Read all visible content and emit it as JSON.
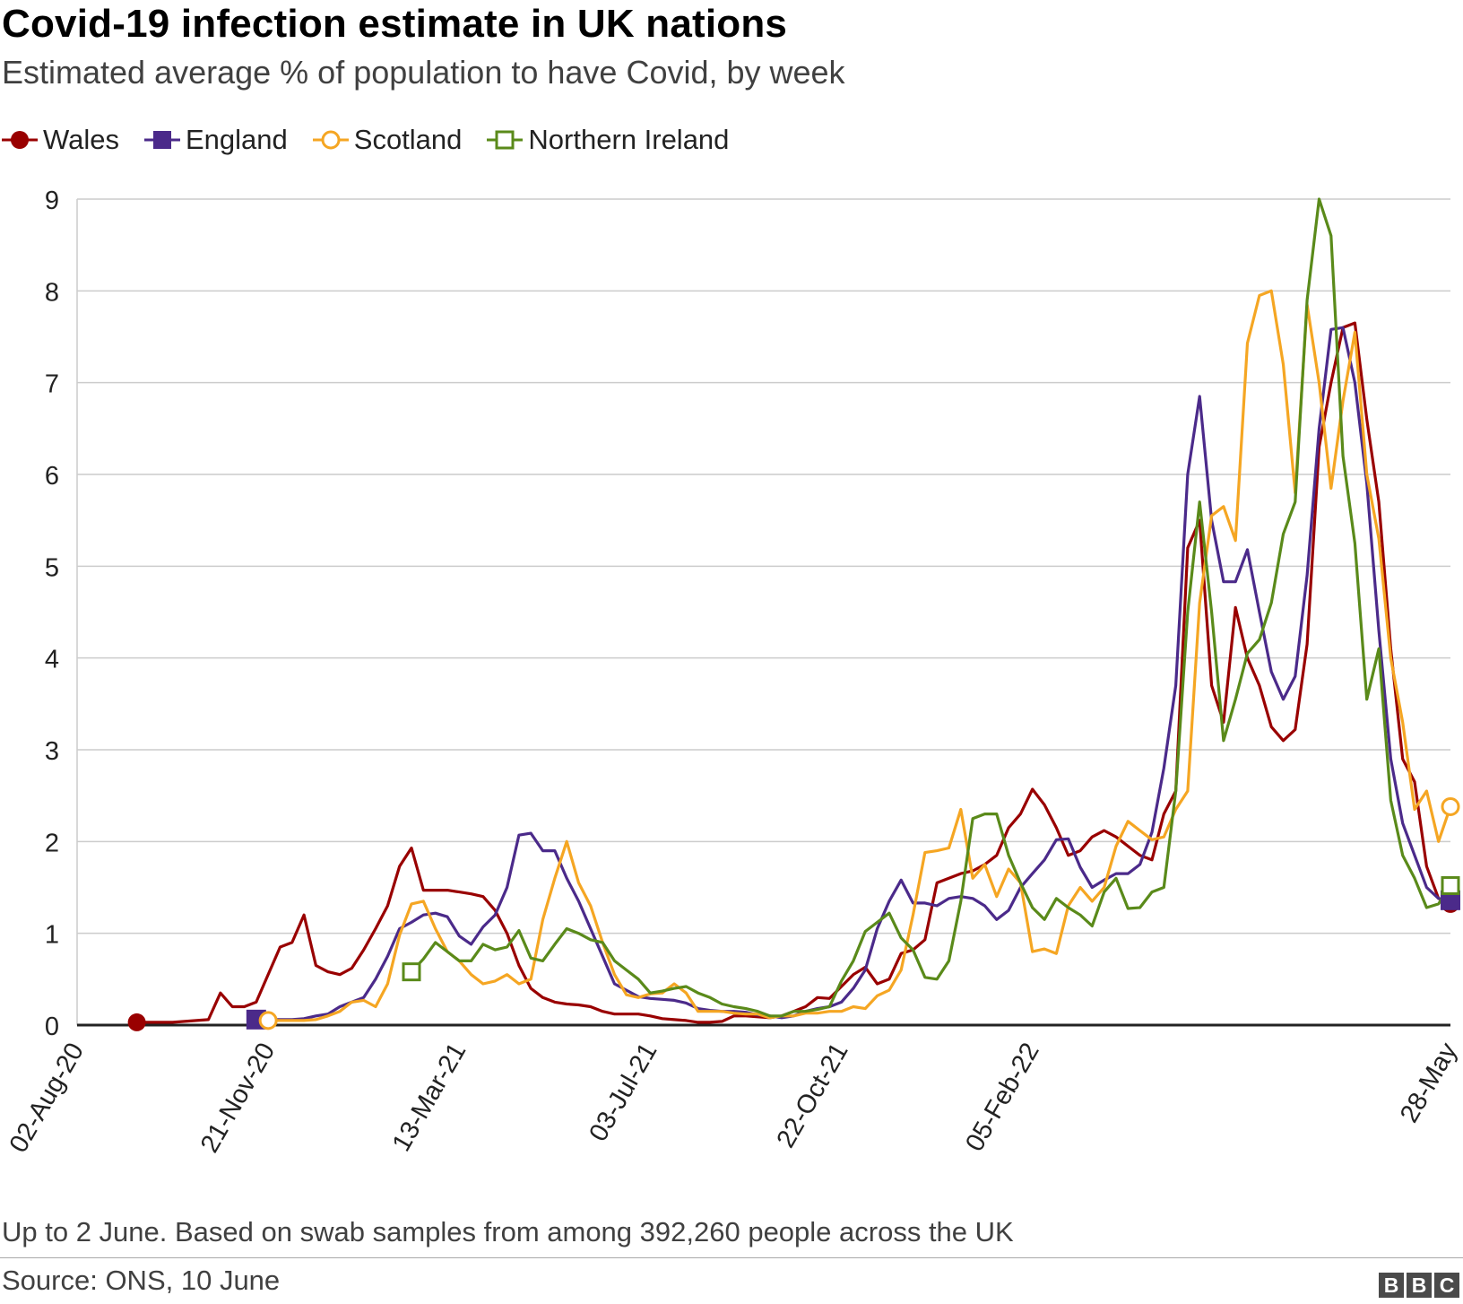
{
  "header": {
    "title": "Covid-19 infection estimate in UK nations",
    "subtitle": "Estimated average % of population to have Covid, by week"
  },
  "footer": {
    "note": "Up to 2 June. Based on swab samples from among 392,260 people across the UK",
    "source": "Source: ONS, 10 June",
    "logo_letters": [
      "B",
      "B",
      "C"
    ]
  },
  "chart_data": {
    "type": "line",
    "title": "Covid-19 infection estimate in UK nations",
    "subtitle": "Estimated average % of population to have Covid, by week",
    "ylim": [
      0,
      9
    ],
    "yticks": [
      "0",
      "1",
      "2",
      "3",
      "4",
      "5",
      "6",
      "7",
      "8",
      "9"
    ],
    "xticks": [
      "02-Aug-20",
      "21-Nov-20",
      "13-Mar-21",
      "03-Jul-21",
      "22-Oct-21",
      "05-Feb-22",
      "28-May"
    ],
    "grid": "horizontal",
    "legend_position": "top-left",
    "series": [
      {
        "name": "Wales",
        "color": "#990000",
        "marker": "circle-filled",
        "values": [
          0.03,
          0.03,
          0.03,
          0.03,
          0.04,
          0.05,
          0.06,
          0.35,
          0.2,
          0.2,
          0.25,
          0.55,
          0.85,
          0.9,
          1.2,
          0.65,
          0.58,
          0.55,
          0.62,
          0.82,
          1.05,
          1.3,
          1.73,
          1.93,
          1.47,
          1.47,
          1.47,
          1.45,
          1.43,
          1.4,
          1.25,
          1.0,
          0.65,
          0.4,
          0.3,
          0.25,
          0.23,
          0.22,
          0.2,
          0.15,
          0.12,
          0.12,
          0.12,
          0.1,
          0.07,
          0.06,
          0.05,
          0.03,
          0.03,
          0.04,
          0.1,
          0.1,
          0.09,
          0.08,
          0.1,
          0.15,
          0.2,
          0.3,
          0.29,
          0.42,
          0.55,
          0.63,
          0.45,
          0.5,
          0.78,
          0.82,
          0.93,
          1.55,
          1.6,
          1.65,
          1.68,
          1.75,
          1.85,
          2.15,
          2.3,
          2.57,
          2.4,
          2.15,
          1.85,
          1.9,
          2.05,
          2.12,
          2.05,
          1.95,
          1.85,
          1.8,
          2.3,
          2.55,
          5.2,
          5.5,
          3.7,
          3.3,
          4.55,
          4.0,
          3.7,
          3.25,
          3.1,
          3.22,
          4.15,
          6.3,
          7.0,
          7.6,
          7.65,
          6.6,
          5.7,
          4.1,
          2.9,
          2.65,
          1.73,
          1.38,
          1.32
        ]
      },
      {
        "name": "England",
        "color": "#4b2a8a",
        "marker": "square-filled",
        "values": [
          0.06,
          0.06,
          0.06,
          0.06,
          0.07,
          0.1,
          0.12,
          0.2,
          0.25,
          0.3,
          0.5,
          0.75,
          1.05,
          1.12,
          1.2,
          1.22,
          1.18,
          0.97,
          0.88,
          1.07,
          1.2,
          1.5,
          2.07,
          2.09,
          1.9,
          1.9,
          1.6,
          1.35,
          1.05,
          0.75,
          0.45,
          0.38,
          0.31,
          0.29,
          0.28,
          0.27,
          0.24,
          0.18,
          0.16,
          0.15,
          0.15,
          0.14,
          0.11,
          0.1,
          0.08,
          0.1,
          0.15,
          0.18,
          0.2,
          0.25,
          0.4,
          0.6,
          1.05,
          1.35,
          1.58,
          1.33,
          1.33,
          1.3,
          1.38,
          1.4,
          1.38,
          1.3,
          1.15,
          1.25,
          1.5,
          1.65,
          1.8,
          2.02,
          2.03,
          1.72,
          1.5,
          1.58,
          1.65,
          1.65,
          1.75,
          2.1,
          2.8,
          3.7,
          6.0,
          6.85,
          5.5,
          4.83,
          4.83,
          5.18,
          4.5,
          3.85,
          3.55,
          3.8,
          4.9,
          6.5,
          7.58,
          7.6,
          7.0,
          5.9,
          4.3,
          2.9,
          2.2,
          1.85,
          1.5,
          1.38,
          1.36
        ]
      },
      {
        "name": "Scotland",
        "color": "#f5a623",
        "marker": "circle-open",
        "values": [
          0.05,
          0.05,
          0.05,
          0.05,
          0.06,
          0.1,
          0.15,
          0.25,
          0.27,
          0.2,
          0.45,
          0.98,
          1.32,
          1.35,
          1.05,
          0.8,
          0.7,
          0.55,
          0.45,
          0.48,
          0.55,
          0.45,
          0.5,
          1.15,
          1.6,
          2.0,
          1.55,
          1.3,
          0.9,
          0.55,
          0.33,
          0.3,
          0.34,
          0.35,
          0.45,
          0.35,
          0.15,
          0.15,
          0.15,
          0.13,
          0.12,
          0.12,
          0.08,
          0.1,
          0.1,
          0.13,
          0.13,
          0.15,
          0.15,
          0.2,
          0.18,
          0.32,
          0.38,
          0.6,
          1.2,
          1.88,
          1.9,
          1.93,
          2.35,
          1.6,
          1.75,
          1.4,
          1.7,
          1.55,
          0.8,
          0.83,
          0.78,
          1.3,
          1.5,
          1.35,
          1.5,
          1.95,
          2.22,
          2.12,
          2.02,
          2.05,
          2.35,
          2.55,
          4.6,
          5.55,
          5.65,
          5.28,
          7.43,
          7.95,
          8.0,
          7.2,
          5.8,
          7.85,
          7.0,
          5.85,
          6.8,
          7.55,
          6.0,
          5.3,
          4.0,
          3.3,
          2.35,
          2.55,
          2.0,
          2.38
        ]
      },
      {
        "name": "Northern Ireland",
        "color": "#5a8a1a",
        "marker": "square-open",
        "values": [
          0.58,
          0.72,
          0.9,
          0.8,
          0.7,
          0.7,
          0.88,
          0.82,
          0.85,
          1.03,
          0.73,
          0.7,
          0.88,
          1.05,
          1.0,
          0.93,
          0.9,
          0.7,
          0.6,
          0.5,
          0.35,
          0.37,
          0.4,
          0.42,
          0.35,
          0.3,
          0.23,
          0.2,
          0.18,
          0.15,
          0.1,
          0.1,
          0.15,
          0.15,
          0.17,
          0.2,
          0.48,
          0.7,
          1.02,
          1.12,
          1.22,
          0.95,
          0.82,
          0.52,
          0.5,
          0.7,
          1.35,
          2.25,
          2.3,
          2.3,
          1.85,
          1.55,
          1.28,
          1.15,
          1.38,
          1.28,
          1.2,
          1.08,
          1.45,
          1.6,
          1.27,
          1.28,
          1.45,
          1.5,
          2.55,
          4.5,
          5.7,
          4.5,
          3.1,
          3.55,
          4.05,
          4.2,
          4.6,
          5.35,
          5.7,
          7.9,
          9.0,
          8.6,
          6.2,
          5.25,
          3.55,
          4.1,
          2.45,
          1.85,
          1.6,
          1.28,
          1.32,
          1.52
        ]
      }
    ]
  }
}
